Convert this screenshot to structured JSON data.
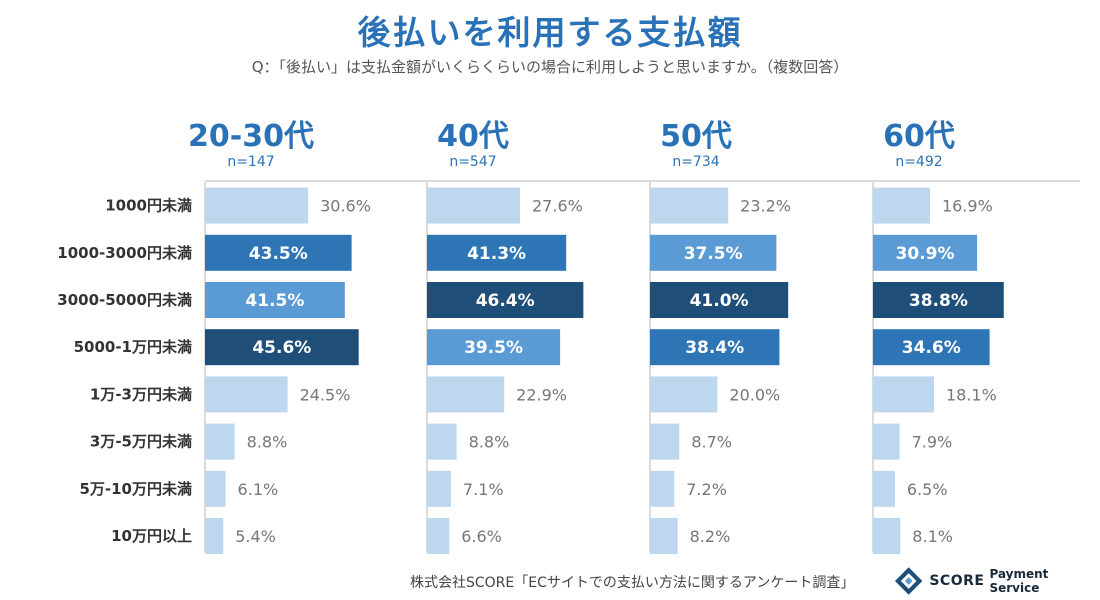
{
  "chart_data": {
    "type": "bar",
    "title": "後払いを利用する支払額",
    "subtitle": "Q：「後払い」は支払金額がいくらくらいの場合に利用しようと思いますか。（複数回答）",
    "categories": [
      "1000円未満",
      "1000-3000円未満",
      "3000-5000円未満",
      "5000-1万円未満",
      "1万-3万円未満",
      "3万-5万円未満",
      "5万-10万円未満",
      "10万円以上"
    ],
    "series": [
      {
        "name": "20-30代",
        "n": "n=147",
        "values": [
          30.6,
          43.5,
          41.5,
          45.6,
          24.5,
          8.8,
          6.1,
          5.4
        ],
        "labels": [
          "30.6%",
          "43.5%",
          "41.5%",
          "45.6%",
          "24.5%",
          "8.8%",
          "6.1%",
          "5.4%"
        ]
      },
      {
        "name": "40代",
        "n": "n=547",
        "values": [
          27.6,
          41.3,
          46.4,
          39.5,
          22.9,
          8.8,
          7.1,
          6.6
        ],
        "labels": [
          "27.6%",
          "41.3%",
          "46.4%",
          "39.5%",
          "22.9%",
          "8.8%",
          "7.1%",
          "6.6%"
        ]
      },
      {
        "name": "50代",
        "n": "n=734",
        "values": [
          23.2,
          37.5,
          41.0,
          38.4,
          20.0,
          8.7,
          7.2,
          8.2
        ],
        "labels": [
          "23.2%",
          "37.5%",
          "41.0%",
          "38.4%",
          "20.0%",
          "8.7%",
          "7.2%",
          "8.2%"
        ]
      },
      {
        "name": "60代",
        "n": "n=492",
        "values": [
          16.9,
          30.9,
          38.8,
          34.6,
          18.1,
          7.9,
          6.5,
          8.1
        ],
        "labels": [
          "16.9%",
          "30.9%",
          "38.8%",
          "34.6%",
          "18.1%",
          "7.9%",
          "6.5%",
          "8.1%"
        ]
      }
    ],
    "value_unit": "%",
    "highlight_rule": "top 3 values per group shaded; darkest = highest",
    "colors": {
      "rank1": "#1f4e79",
      "rank2": "#2e75b6",
      "rank3": "#5b9bd5",
      "other": "#bdd7ee",
      "heading": "#2a72b8",
      "axis": "#cfcfcf"
    }
  },
  "footer": {
    "source": "株式会社SCORE「ECサイトでの支払い方法に関するアンケート調査」",
    "brand_name": "SCORE",
    "brand_sub": "Payment Service"
  }
}
